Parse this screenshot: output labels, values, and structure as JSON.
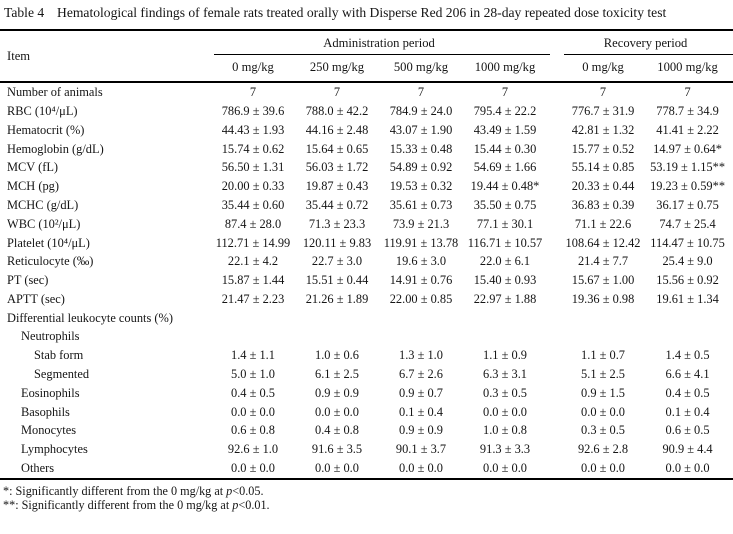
{
  "page": {
    "table_label": "Table 4",
    "caption": "Hematological findings of female rats treated orally with Disperse Red 206 in 28-day repeated dose toxicity test"
  },
  "table": {
    "item_header": "Item",
    "groups": [
      {
        "label": "Administration period"
      },
      {
        "label": "Recovery period"
      }
    ],
    "columns": [
      "0 mg/kg",
      "250 mg/kg",
      "500 mg/kg",
      "1000 mg/kg",
      "0 mg/kg",
      "1000 mg/kg"
    ],
    "rows": [
      {
        "label": "Number of animals",
        "indent": 0,
        "values": [
          "7",
          "7",
          "7",
          "7",
          "7",
          "7"
        ]
      },
      {
        "label": "RBC (10⁴/μL)",
        "indent": 0,
        "values": [
          "786.9 ± 39.6",
          "788.0 ± 42.2",
          "784.9 ± 24.0",
          "795.4 ± 22.2",
          "776.7 ± 31.9",
          "778.7 ± 34.9"
        ]
      },
      {
        "label": "Hematocrit (%)",
        "indent": 0,
        "values": [
          "44.43 ± 1.93",
          "44.16 ± 2.48",
          "43.07 ± 1.90",
          "43.49 ± 1.59",
          "42.81 ± 1.32",
          "41.41 ± 2.22"
        ]
      },
      {
        "label": "Hemoglobin (g/dL)",
        "indent": 0,
        "values": [
          "15.74 ± 0.62",
          "15.64 ± 0.65",
          "15.33 ± 0.48",
          "15.44 ± 0.30",
          "15.77 ± 0.52",
          "14.97 ± 0.64*"
        ]
      },
      {
        "label": "MCV (fL)",
        "indent": 0,
        "values": [
          "56.50 ± 1.31",
          "56.03 ± 1.72",
          "54.89 ± 0.92",
          "54.69 ± 1.66",
          "55.14 ± 0.85",
          "53.19 ± 1.15**"
        ]
      },
      {
        "label": "MCH (pg)",
        "indent": 0,
        "values": [
          "20.00 ± 0.33",
          "19.87 ± 0.43",
          "19.53 ± 0.32",
          "19.44 ± 0.48*",
          "20.33 ± 0.44",
          "19.23 ± 0.59**"
        ]
      },
      {
        "label": "MCHC (g/dL)",
        "indent": 0,
        "values": [
          "35.44 ± 0.60",
          "35.44 ± 0.72",
          "35.61 ± 0.73",
          "35.50 ± 0.75",
          "36.83 ± 0.39",
          "36.17 ± 0.75"
        ]
      },
      {
        "label": "WBC (10²/μL)",
        "indent": 0,
        "values": [
          "87.4 ± 28.0",
          "71.3 ± 23.3",
          "73.9 ± 21.3",
          "77.1 ± 30.1",
          "71.1 ± 22.6",
          "74.7 ± 25.4"
        ]
      },
      {
        "label": "Platelet (10⁴/μL)",
        "indent": 0,
        "values": [
          "112.71 ± 14.99",
          "120.11 ± 9.83",
          "119.91 ± 13.78",
          "116.71 ± 10.57",
          "108.64 ± 12.42",
          "114.47 ± 10.75"
        ]
      },
      {
        "label": "Reticulocyte (‰)",
        "indent": 0,
        "values": [
          "22.1 ± 4.2",
          "22.7 ± 3.0",
          "19.6 ± 3.0",
          "22.0 ± 6.1",
          "21.4 ± 7.7",
          "25.4 ± 9.0"
        ]
      },
      {
        "label": "PT (sec)",
        "indent": 0,
        "values": [
          "15.87 ± 1.44",
          "15.51 ± 0.44",
          "14.91 ± 0.76",
          "15.40 ± 0.93",
          "15.67 ± 1.00",
          "15.56 ± 0.92"
        ]
      },
      {
        "label": "APTT (sec)",
        "indent": 0,
        "values": [
          "21.47 ± 2.23",
          "21.26 ± 1.89",
          "22.00 ± 0.85",
          "22.97 ± 1.88",
          "19.36 ± 0.98",
          "19.61 ± 1.34"
        ]
      },
      {
        "label": "Differential leukocyte counts (%)",
        "indent": 0,
        "values": [
          "",
          "",
          "",
          "",
          "",
          ""
        ]
      },
      {
        "label": "Neutrophils",
        "indent": 1,
        "values": [
          "",
          "",
          "",
          "",
          "",
          ""
        ]
      },
      {
        "label": "Stab form",
        "indent": 2,
        "values": [
          "1.4 ± 1.1",
          "1.0 ± 0.6",
          "1.3 ± 1.0",
          "1.1 ± 0.9",
          "1.1 ± 0.7",
          "1.4 ± 0.5"
        ]
      },
      {
        "label": "Segmented",
        "indent": 2,
        "values": [
          "5.0 ± 1.0",
          "6.1 ± 2.5",
          "6.7 ± 2.6",
          "6.3 ± 3.1",
          "5.1 ± 2.5",
          "6.6 ± 4.1"
        ]
      },
      {
        "label": "Eosinophils",
        "indent": 1,
        "values": [
          "0.4 ± 0.5",
          "0.9 ± 0.9",
          "0.9 ± 0.7",
          "0.3 ± 0.5",
          "0.9 ± 1.5",
          "0.4 ± 0.5"
        ]
      },
      {
        "label": "Basophils",
        "indent": 1,
        "values": [
          "0.0 ± 0.0",
          "0.0 ± 0.0",
          "0.1 ± 0.4",
          "0.0 ± 0.0",
          "0.0 ± 0.0",
          "0.1 ± 0.4"
        ]
      },
      {
        "label": "Monocytes",
        "indent": 1,
        "values": [
          "0.6 ± 0.8",
          "0.4 ± 0.8",
          "0.9 ± 0.9",
          "1.0 ± 0.8",
          "0.3 ± 0.5",
          "0.6 ± 0.5"
        ]
      },
      {
        "label": "Lymphocytes",
        "indent": 1,
        "values": [
          "92.6 ± 1.0",
          "91.6 ± 3.5",
          "90.1 ± 3.7",
          "91.3 ± 3.3",
          "92.6 ± 2.8",
          "90.9 ± 4.4"
        ]
      },
      {
        "label": "Others",
        "indent": 1,
        "values": [
          "0.0 ± 0.0",
          "0.0 ± 0.0",
          "0.0 ± 0.0",
          "0.0 ± 0.0",
          "0.0 ± 0.0",
          "0.0 ± 0.0"
        ]
      }
    ]
  },
  "footnotes": [
    {
      "prefix": "*",
      "text": ": Significantly different from the 0 mg/kg at ",
      "p": "p",
      "suffix": "<0.05."
    },
    {
      "prefix": "**",
      "text": ": Significantly different from the 0 mg/kg at ",
      "p": "p",
      "suffix": "<0.01."
    }
  ],
  "colors": {
    "text": "#151515",
    "rule": "#000000",
    "background": "#ffffff"
  }
}
